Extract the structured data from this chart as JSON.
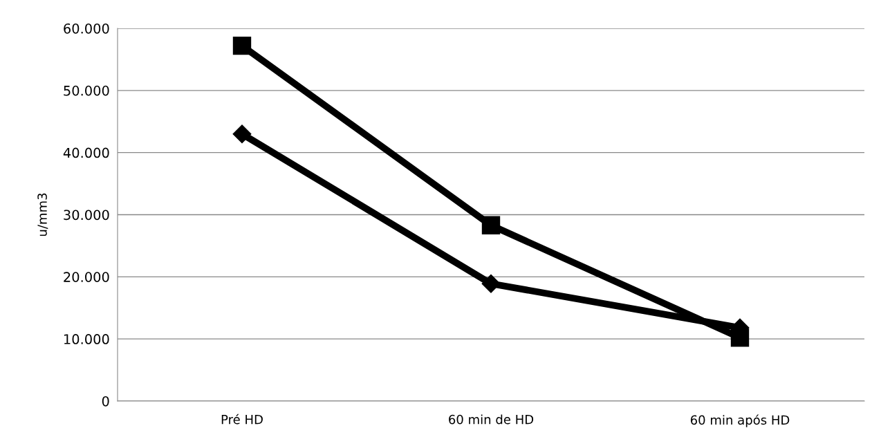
{
  "chart_data": {
    "type": "line",
    "ylabel": "u/mm3",
    "categories": [
      "Pré HD",
      "60 min de HD",
      "60 min após HD"
    ],
    "series": [
      {
        "color": "#000000",
        "marker": "square",
        "values": [
          57200,
          28300,
          10200
        ]
      },
      {
        "color": "#000000",
        "marker": "diamond",
        "values": [
          43000,
          18900,
          11800
        ]
      }
    ],
    "ylim": [
      0,
      60000
    ],
    "yticks": [
      {
        "value": 0,
        "label": "0"
      },
      {
        "value": 10000,
        "label": "10.000"
      },
      {
        "value": 20000,
        "label": "20.000"
      },
      {
        "value": 30000,
        "label": "30.000"
      },
      {
        "value": 40000,
        "label": "40.000"
      },
      {
        "value": 50000,
        "label": "50.000"
      },
      {
        "value": 60000,
        "label": "60.000"
      }
    ],
    "grid": "y",
    "line_style": "solid",
    "legend": false
  }
}
